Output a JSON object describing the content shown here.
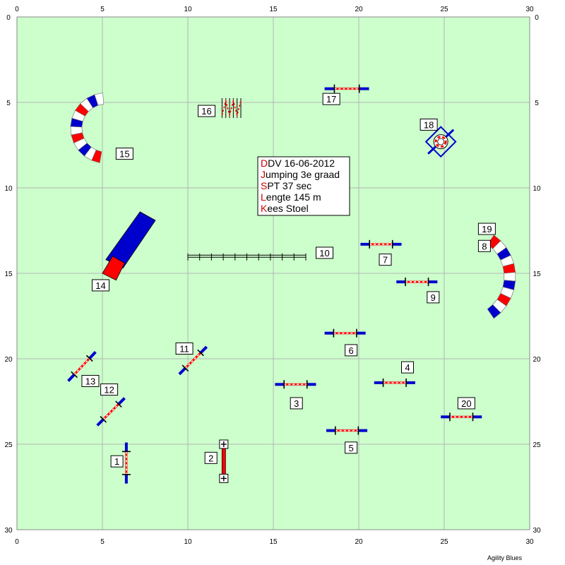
{
  "field": {
    "width": 30,
    "height": 30,
    "grid_step": 5,
    "bg": "#ccffcc",
    "grid_color": "#b4b4b4"
  },
  "axes": {
    "x_ticks": [
      "0",
      "5",
      "10",
      "15",
      "20",
      "25",
      "30"
    ],
    "y_ticks": [
      "0",
      "5",
      "10",
      "15",
      "20",
      "25",
      "30"
    ]
  },
  "info": {
    "lines": [
      {
        "first": "D",
        "rest": "DV  16-06-2012"
      },
      {
        "first": "J",
        "rest": "umping 3e graad"
      },
      {
        "first": "S",
        "rest": "PT 37 sec"
      },
      {
        "first": "L",
        "rest": "engte 145 m"
      },
      {
        "first": "K",
        "rest": "ees Stoel"
      }
    ],
    "first_color": "#cc0000"
  },
  "credit": "Agility Blues",
  "colors": {
    "red": "#ff0000",
    "blue": "#0000cc",
    "white": "#ffffff",
    "black": "#000000"
  },
  "obstacles": [
    {
      "num": "1",
      "type": "jump",
      "x1": 6.4,
      "y1": 24.9,
      "x2": 6.4,
      "y2": 27.3,
      "label_x": 5.5,
      "label_y": 26.0
    },
    {
      "num": "2",
      "type": "wall",
      "x1": 12.1,
      "y1": 25.0,
      "x2": 12.1,
      "y2": 27.0,
      "label_x": 11.0,
      "label_y": 25.8
    },
    {
      "num": "3",
      "type": "jump",
      "x1": 15.1,
      "y1": 21.5,
      "x2": 17.5,
      "y2": 21.5,
      "label_x": 16.0,
      "label_y": 22.6
    },
    {
      "num": "4",
      "type": "jump",
      "x1": 20.9,
      "y1": 21.4,
      "x2": 23.3,
      "y2": 21.4,
      "label_x": 22.5,
      "label_y": 20.5
    },
    {
      "num": "5",
      "type": "jump",
      "x1": 18.1,
      "y1": 24.2,
      "x2": 20.5,
      "y2": 24.2,
      "label_x": 19.2,
      "label_y": 25.2
    },
    {
      "num": "6",
      "type": "jump",
      "x1": 18.0,
      "y1": 18.5,
      "x2": 20.4,
      "y2": 18.5,
      "label_x": 19.2,
      "label_y": 19.5
    },
    {
      "num": "7",
      "type": "jump",
      "x1": 20.1,
      "y1": 13.3,
      "x2": 22.5,
      "y2": 13.3,
      "label_x": 21.2,
      "label_y": 14.2
    },
    {
      "num": "8",
      "type": "tunnel",
      "label_x": 27.0,
      "label_y": 13.4
    },
    {
      "num": "9",
      "type": "jump",
      "x1": 22.2,
      "y1": 15.5,
      "x2": 24.6,
      "y2": 15.5,
      "label_x": 24.0,
      "label_y": 16.4
    },
    {
      "num": "10",
      "type": "long",
      "x1": 10.0,
      "y1": 14.0,
      "x2": 16.9,
      "y2": 14.0,
      "label_x": 17.5,
      "label_y": 13.8
    },
    {
      "num": "11",
      "type": "jump",
      "x1": 9.5,
      "y1": 20.9,
      "x2": 11.1,
      "y2": 19.3,
      "label_x": 9.3,
      "label_y": 19.4
    },
    {
      "num": "12",
      "type": "jump",
      "x1": 4.7,
      "y1": 23.9,
      "x2": 6.3,
      "y2": 22.3,
      "label_x": 4.9,
      "label_y": 21.8
    },
    {
      "num": "13",
      "type": "jump",
      "x1": 3.0,
      "y1": 21.3,
      "x2": 4.6,
      "y2": 19.6,
      "label_x": 3.8,
      "label_y": 21.3
    },
    {
      "num": "14",
      "type": "chute",
      "label_x": 4.4,
      "label_y": 15.7
    },
    {
      "num": "15",
      "type": "tunnel",
      "label_x": 5.8,
      "label_y": 8.0
    },
    {
      "num": "16",
      "type": "weave",
      "x1": 12.0,
      "y1": 5.0,
      "x2": 13.1,
      "y2": 5.0,
      "label_x": 10.6,
      "label_y": 5.5
    },
    {
      "num": "17",
      "type": "jump",
      "x1": 18.0,
      "y1": 4.2,
      "x2": 20.6,
      "y2": 4.2,
      "label_x": 17.9,
      "label_y": 4.8
    },
    {
      "num": "18",
      "type": "tyre",
      "x": 24.8,
      "y": 7.3,
      "label_x": 23.6,
      "label_y": 6.3
    },
    {
      "num": "19",
      "type": "none",
      "label_x": 27.0,
      "label_y": 12.4
    },
    {
      "num": "20",
      "type": "jump",
      "x1": 24.8,
      "y1": 23.4,
      "x2": 27.2,
      "y2": 23.4,
      "label_x": 25.8,
      "label_y": 22.6
    }
  ]
}
